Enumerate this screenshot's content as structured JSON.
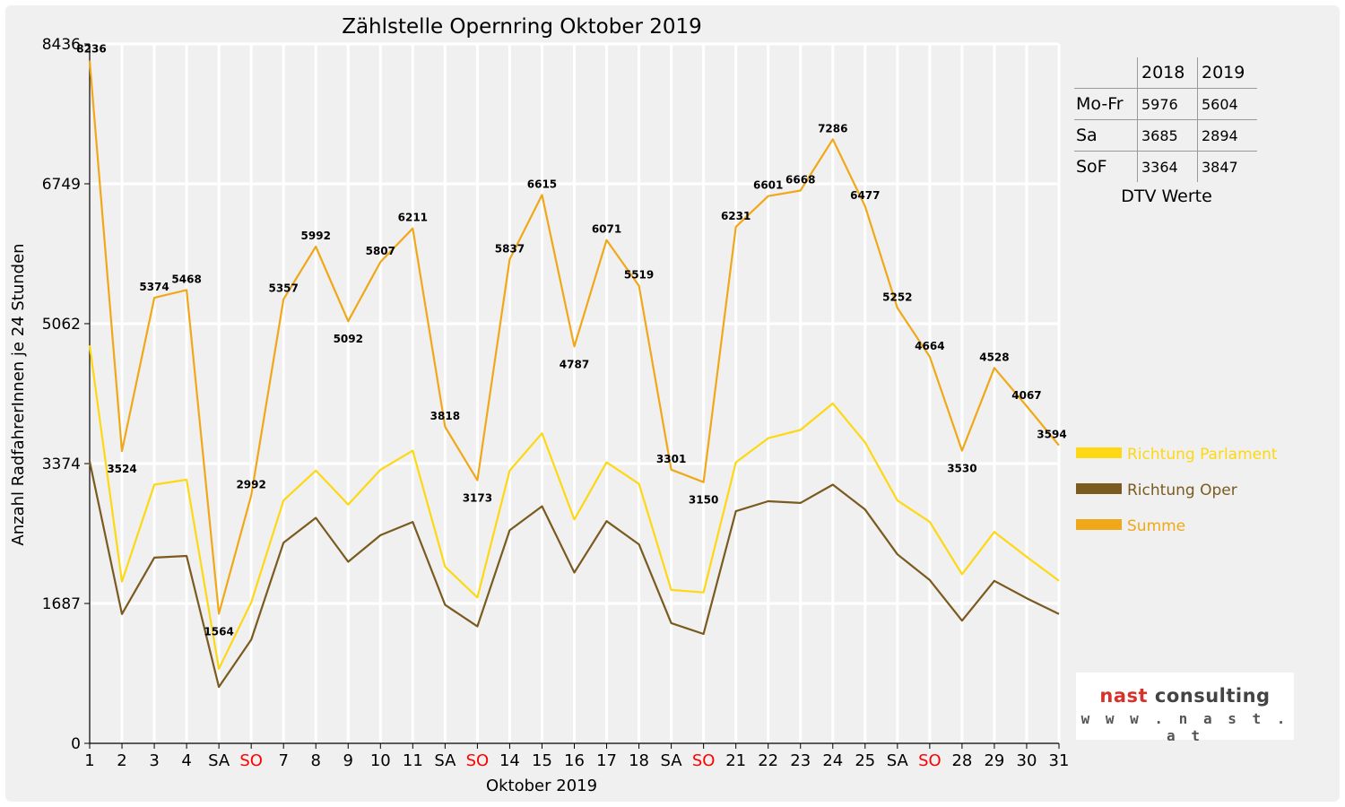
{
  "chart_data": {
    "type": "line",
    "title": "Zählstelle Opernring Oktober 2019",
    "xlabel": "Oktober 2019",
    "ylabel": "Anzahl RadfahrerInnen je 24 Stunden",
    "ylim": [
      0,
      8436
    ],
    "yticks": [
      "0",
      "1687",
      "3374",
      "5062",
      "6749",
      "8436"
    ],
    "categories": [
      "1",
      "2",
      "3",
      "4",
      "SA",
      "SO",
      "7",
      "8",
      "9",
      "10",
      "11",
      "SA",
      "SO",
      "14",
      "15",
      "16",
      "17",
      "18",
      "SA",
      "SO",
      "21",
      "22",
      "23",
      "24",
      "25",
      "SA",
      "SO",
      "28",
      "29",
      "30",
      "31"
    ],
    "weekend_color": "#ff0000",
    "grid": true,
    "legend_position": "right",
    "series": [
      {
        "name": "Richtung Parlament",
        "color": "#fdd813",
        "values": [
          4800,
          1950,
          3120,
          3180,
          900,
          1700,
          2930,
          3290,
          2880,
          3300,
          3530,
          2130,
          1760,
          3290,
          3740,
          2700,
          3390,
          3130,
          1850,
          1820,
          3390,
          3680,
          3780,
          4100,
          3630,
          2930,
          2670,
          2040,
          2550,
          2250,
          1960
        ]
      },
      {
        "name": "Richtung Oper",
        "color": "#7a5a1f",
        "values": [
          3400,
          1560,
          2240,
          2260,
          680,
          1250,
          2420,
          2720,
          2190,
          2510,
          2670,
          1670,
          1410,
          2570,
          2860,
          2060,
          2680,
          2400,
          1450,
          1320,
          2800,
          2920,
          2900,
          3120,
          2820,
          2280,
          1970,
          1480,
          1960,
          1750,
          1560
        ]
      },
      {
        "name": "Summe",
        "color": "#f0a818",
        "values": [
          8236,
          3524,
          5374,
          5468,
          1564,
          2992,
          5357,
          5992,
          5092,
          5807,
          6211,
          3818,
          3173,
          5837,
          6615,
          4787,
          6071,
          5519,
          3301,
          3150,
          6231,
          6601,
          6668,
          7286,
          6477,
          5252,
          4664,
          3530,
          4528,
          4067,
          3594
        ]
      }
    ],
    "summe_labels": [
      "8236",
      "3524",
      "5374",
      "5468",
      "1564",
      "2992",
      "5357",
      "5992",
      "5092",
      "5807",
      "6211",
      "3818",
      "3173",
      "5837",
      "6615",
      "4787",
      "6071",
      "5519",
      "3301",
      "3150",
      "6231",
      "6601",
      "6668",
      "7286",
      "6477",
      "5252",
      "4664",
      "3530",
      "4528",
      "4067",
      "3594"
    ]
  },
  "dtv_table": {
    "headers": [
      "2018",
      "2019"
    ],
    "rows": [
      {
        "label": "Mo-Fr",
        "v2018": "5976",
        "v2019": "5604"
      },
      {
        "label": "Sa",
        "v2018": "3685",
        "v2019": "2894"
      },
      {
        "label": "SoF",
        "v2018": "3364",
        "v2019": "3847"
      }
    ],
    "caption": "DTV Werte"
  },
  "logo": {
    "brand_part1": "nast",
    "brand_part2": "consulting",
    "url": "w w w . n a s t . a t"
  }
}
